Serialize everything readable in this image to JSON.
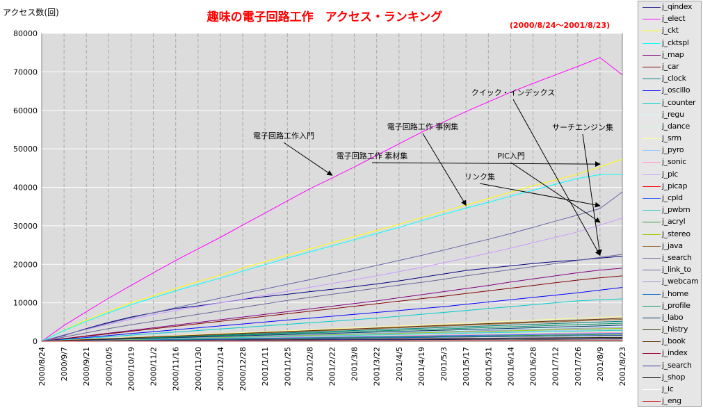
{
  "chart_data": {
    "type": "line",
    "title": "趣味の電子回路工作　アクセス・ランキング",
    "subtitle": "(2000/8/24～2001/8/23)",
    "ylabel": "アクセス数(回)",
    "xlabel": "",
    "ylim": [
      0,
      80000
    ],
    "y_ticks": [
      0,
      10000,
      20000,
      30000,
      40000,
      50000,
      60000,
      70000,
      80000
    ],
    "x_ticks": [
      "2000/8/24",
      "2000/9/7",
      "2000/9/21",
      "2000/10/5",
      "2000/10/19",
      "2000/11/2",
      "2000/11/16",
      "2000/11/30",
      "2000/12/14",
      "2000/12/28",
      "2001/1/11",
      "2001/1/25",
      "2001/2/8",
      "2001/2/22",
      "2001/3/8",
      "2001/3/22",
      "2001/4/5",
      "2001/4/19",
      "2001/5/3",
      "2001/5/17",
      "2001/5/31",
      "2001/6/14",
      "2001/6/28",
      "2001/7/12",
      "2001/7/26",
      "2001/8/9",
      "2001/8/23"
    ],
    "grid": true,
    "legend_position": "right",
    "plot_background": "#dcdcdc",
    "title_color": "#ff0000",
    "annotations": [
      {
        "text": "電子回路工作入門",
        "series": "j_elect",
        "at_date": "2001/2/22"
      },
      {
        "text": "電子回路工作 素材集",
        "series": "j_ckt",
        "at_date": "2001/4/12"
      },
      {
        "text": "電子回路工作 事例集",
        "series": "j_cktspl",
        "at_date": "2001/5/17"
      },
      {
        "text": "リンク集",
        "series": "j_link_to",
        "at_date": "2001/5/27"
      },
      {
        "text": "PIC入門",
        "series": "j_pic",
        "at_date": "2001/6/24"
      },
      {
        "text": "クイック・インデックス",
        "series": "j_qindex",
        "at_date": "2001/8/13"
      },
      {
        "text": "サーチエンジン集",
        "series": "j_search",
        "at_date": "2001/8/19"
      }
    ],
    "series": [
      {
        "name": "j_qindex",
        "color": "#000080",
        "values": [
          0,
          1500,
          3300,
          4900,
          6300,
          7400,
          8500,
          9200,
          10000,
          10900,
          11600,
          12200,
          12900,
          13500,
          14200,
          14900,
          15700,
          16600,
          17500,
          18400,
          19000,
          19600,
          20200,
          20700,
          21100,
          21600,
          22100
        ]
      },
      {
        "name": "j_elect",
        "color": "#ff00ff",
        "values": [
          0,
          4100,
          7700,
          11200,
          14500,
          17800,
          21000,
          24000,
          27000,
          30200,
          33300,
          36500,
          39600,
          42400,
          45300,
          48300,
          51300,
          54300,
          57000,
          59700,
          62200,
          64700,
          67000,
          69200,
          71400,
          73700,
          69200
        ]
      },
      {
        "name": "j_ckt",
        "color": "#ffff00",
        "values": [
          0,
          2900,
          5500,
          7800,
          10000,
          11800,
          13700,
          15500,
          17200,
          19000,
          20700,
          22400,
          24000,
          25600,
          27200,
          28800,
          30400,
          32100,
          33800,
          35400,
          37100,
          38700,
          40400,
          41900,
          43400,
          45300,
          47300
        ]
      },
      {
        "name": "j_cktspl",
        "color": "#00ffff",
        "values": [
          0,
          2800,
          5200,
          7400,
          9500,
          11300,
          13100,
          14800,
          16400,
          18200,
          19900,
          21600,
          23200,
          24800,
          26400,
          28000,
          29600,
          31300,
          33000,
          34600,
          36100,
          37700,
          39200,
          40800,
          42300,
          43300,
          43400
        ]
      },
      {
        "name": "j_map",
        "color": "#800080",
        "values": [
          0,
          700,
          1400,
          2100,
          2800,
          3500,
          4200,
          4900,
          5600,
          6300,
          7000,
          7700,
          8400,
          9100,
          9800,
          10500,
          11300,
          12100,
          12900,
          13700,
          14500,
          15400,
          16200,
          17000,
          17800,
          18500,
          19000
        ]
      },
      {
        "name": "j_car",
        "color": "#800000",
        "values": [
          0,
          650,
          1300,
          1950,
          2600,
          3250,
          3900,
          4550,
          5200,
          5850,
          6500,
          7150,
          7800,
          8450,
          9100,
          9750,
          10400,
          11050,
          11700,
          12400,
          13100,
          13800,
          14500,
          15200,
          15900,
          16500,
          17000
        ]
      },
      {
        "name": "j_clock",
        "color": "#008080",
        "values": [
          0,
          200,
          400,
          600,
          800,
          1000,
          1200,
          1400,
          1600,
          1800,
          2000,
          2200,
          2400,
          2600,
          2800,
          3000,
          3200,
          3400,
          3600,
          3800,
          4000,
          4200,
          4400,
          4600,
          4800,
          5000,
          5200
        ]
      },
      {
        "name": "j_oscillo",
        "color": "#0000ff",
        "values": [
          0,
          500,
          1000,
          1500,
          2000,
          2500,
          3000,
          3500,
          4000,
          4500,
          5000,
          5500,
          6000,
          6500,
          7000,
          7500,
          8000,
          8500,
          9000,
          9600,
          10200,
          10800,
          11400,
          12000,
          12600,
          13300,
          14000
        ]
      },
      {
        "name": "j_counter",
        "color": "#00cccc",
        "values": [
          0,
          400,
          800,
          1200,
          1600,
          2000,
          2400,
          2800,
          3200,
          3600,
          4000,
          4400,
          4800,
          5200,
          5600,
          6000,
          6500,
          7000,
          7500,
          8000,
          8500,
          9000,
          9500,
          10000,
          10500,
          10800,
          11000
        ]
      },
      {
        "name": "j_regu",
        "color": "#ccffff",
        "values": [
          0,
          150,
          300,
          450,
          600,
          750,
          900,
          1050,
          1200,
          1350,
          1500,
          1650,
          1800,
          1950,
          2100,
          2250,
          2400,
          2550,
          2700,
          2850,
          3000,
          3150,
          3300,
          3450,
          3600,
          3750,
          3900
        ]
      },
      {
        "name": "j_dance",
        "color": "#ccffcc",
        "values": [
          0,
          100,
          200,
          300,
          400,
          500,
          600,
          700,
          800,
          900,
          1000,
          1100,
          1200,
          1300,
          1400,
          1500,
          1600,
          1700,
          1800,
          1900,
          2000,
          2100,
          2200,
          2300,
          2400,
          2500,
          2600
        ]
      },
      {
        "name": "j_srm",
        "color": "#ffff99",
        "values": [
          0,
          250,
          500,
          750,
          1000,
          1250,
          1500,
          1750,
          2000,
          2250,
          2500,
          2750,
          3000,
          3250,
          3500,
          3750,
          4000,
          4250,
          4500,
          4750,
          5000,
          5250,
          5500,
          5750,
          6000,
          6200,
          6400
        ]
      },
      {
        "name": "j_pyro",
        "color": "#99ccff",
        "values": [
          0,
          120,
          240,
          360,
          480,
          600,
          720,
          840,
          960,
          1080,
          1200,
          1320,
          1440,
          1560,
          1680,
          1800,
          1920,
          2040,
          2160,
          2280,
          2400,
          2520,
          2640,
          2760,
          2880,
          3000,
          3100
        ]
      },
      {
        "name": "j_sonic",
        "color": "#ff99cc",
        "values": [
          0,
          90,
          180,
          270,
          360,
          450,
          540,
          630,
          720,
          810,
          900,
          990,
          1080,
          1170,
          1260,
          1350,
          1440,
          1530,
          1620,
          1710,
          1800,
          1890,
          1980,
          2070,
          2160,
          2250,
          2300
        ]
      },
      {
        "name": "j_pic",
        "color": "#cc99ff",
        "values": [
          0,
          1700,
          3100,
          4400,
          5700,
          6900,
          8000,
          9000,
          10000,
          11000,
          12000,
          13000,
          14000,
          15000,
          16000,
          17000,
          18100,
          19200,
          20400,
          21600,
          22900,
          24200,
          25600,
          27000,
          28400,
          30200,
          32000
        ]
      },
      {
        "name": "j_picap",
        "color": "#ff0000",
        "values": [
          0,
          60,
          120,
          180,
          240,
          300,
          360,
          420,
          480,
          540,
          600,
          660,
          720,
          780,
          840,
          900,
          960,
          1020,
          1080,
          1140,
          1200,
          1260,
          1320,
          1380,
          1440,
          1500,
          1550
        ]
      },
      {
        "name": "j_cpld",
        "color": "#3366ff",
        "values": [
          0,
          80,
          160,
          240,
          320,
          400,
          480,
          560,
          640,
          720,
          800,
          880,
          960,
          1040,
          1120,
          1200,
          1280,
          1360,
          1440,
          1520,
          1600,
          1680,
          1760,
          1840,
          1920,
          2000,
          2050
        ]
      },
      {
        "name": "j_pwbm",
        "color": "#33cccc",
        "values": [
          0,
          110,
          220,
          330,
          440,
          550,
          660,
          770,
          880,
          990,
          1100,
          1210,
          1320,
          1430,
          1540,
          1650,
          1760,
          1870,
          1980,
          2090,
          2200,
          2310,
          2420,
          2530,
          2640,
          2750,
          2850
        ]
      },
      {
        "name": "j_acryl",
        "color": "#339933",
        "values": [
          0,
          70,
          140,
          210,
          280,
          350,
          420,
          490,
          560,
          630,
          700,
          770,
          840,
          910,
          980,
          1050,
          1120,
          1190,
          1260,
          1330,
          1400,
          1470,
          1540,
          1610,
          1680,
          1750,
          1800
        ]
      },
      {
        "name": "j_stereo",
        "color": "#99cc00",
        "values": [
          0,
          130,
          260,
          390,
          520,
          650,
          780,
          910,
          1040,
          1170,
          1300,
          1430,
          1560,
          1690,
          1820,
          1950,
          2080,
          2210,
          2340,
          2470,
          2600,
          2730,
          2860,
          2990,
          3120,
          3250,
          3350
        ]
      },
      {
        "name": "j_java",
        "color": "#996633",
        "values": [
          0,
          220,
          440,
          660,
          880,
          1100,
          1320,
          1540,
          1760,
          1980,
          2200,
          2420,
          2640,
          2860,
          3080,
          3300,
          3520,
          3740,
          3960,
          4180,
          4400,
          4620,
          4840,
          5060,
          5280,
          5500,
          5700
        ]
      },
      {
        "name": "j_search",
        "color": "#666699",
        "values": [
          0,
          1100,
          2200,
          3300,
          4300,
          5200,
          6100,
          7000,
          7900,
          8800,
          9700,
          10600,
          11400,
          12200,
          13000,
          13800,
          14600,
          15300,
          16100,
          17000,
          17800,
          18600,
          19400,
          20200,
          21000,
          21800,
          22600
        ]
      },
      {
        "name": "j_link_to",
        "color": "#6666aa",
        "values": [
          0,
          1600,
          3200,
          4700,
          6100,
          7400,
          8700,
          10000,
          11200,
          12400,
          13600,
          14800,
          16000,
          17200,
          18400,
          19700,
          21000,
          22300,
          23700,
          25100,
          26500,
          28000,
          29600,
          31200,
          32800,
          34500,
          38800
        ]
      },
      {
        "name": "j_webcam",
        "color": "#9999cc",
        "values": [
          0,
          140,
          280,
          420,
          560,
          700,
          840,
          980,
          1120,
          1260,
          1400,
          1540,
          1680,
          1820,
          1960,
          2100,
          2240,
          2380,
          2520,
          2660,
          2800,
          2940,
          3080,
          3220,
          3360,
          3500,
          3600
        ]
      },
      {
        "name": "j_home",
        "color": "#0066cc",
        "values": [
          0,
          60,
          120,
          180,
          240,
          300,
          360,
          420,
          480,
          540,
          600,
          660,
          720,
          780,
          840,
          900,
          960,
          1020,
          1080,
          1140,
          1200,
          1260,
          1320,
          1380,
          1440,
          1500,
          1500
        ]
      },
      {
        "name": "j_profile",
        "color": "#009966",
        "values": [
          0,
          180,
          360,
          540,
          720,
          900,
          1080,
          1260,
          1440,
          1620,
          1800,
          1980,
          2160,
          2340,
          2520,
          2700,
          2880,
          3060,
          3240,
          3420,
          3600,
          3780,
          3960,
          4140,
          4320,
          4500,
          4700
        ]
      },
      {
        "name": "j_labo",
        "color": "#003366",
        "values": [
          0,
          160,
          320,
          480,
          640,
          800,
          960,
          1120,
          1280,
          1440,
          1600,
          1760,
          1920,
          2080,
          2240,
          2400,
          2560,
          2720,
          2880,
          3040,
          3200,
          3360,
          3520,
          3680,
          3840,
          4000,
          4200
        ]
      },
      {
        "name": "j_histry",
        "color": "#333300",
        "values": [
          0,
          40,
          80,
          120,
          160,
          200,
          240,
          280,
          320,
          360,
          400,
          440,
          480,
          520,
          560,
          600,
          640,
          680,
          720,
          760,
          800,
          840,
          880,
          920,
          960,
          1000,
          1000
        ]
      },
      {
        "name": "j_book",
        "color": "#663300",
        "values": [
          0,
          230,
          460,
          690,
          920,
          1150,
          1380,
          1610,
          1840,
          2070,
          2300,
          2530,
          2760,
          2990,
          3220,
          3450,
          3680,
          3910,
          4140,
          4370,
          4600,
          4830,
          5060,
          5290,
          5520,
          5750,
          6000
        ]
      },
      {
        "name": "j_index",
        "color": "#990033",
        "values": [
          0,
          30,
          60,
          90,
          120,
          150,
          180,
          210,
          240,
          270,
          300,
          330,
          360,
          390,
          420,
          450,
          480,
          510,
          540,
          570,
          600,
          630,
          660,
          690,
          720,
          750,
          750
        ]
      },
      {
        "name": "j_search",
        "color": "#333399",
        "values": [
          0,
          30,
          60,
          90,
          120,
          150,
          180,
          210,
          240,
          270,
          300,
          330,
          360,
          390,
          420,
          450,
          480,
          510,
          540,
          570,
          600,
          630,
          660,
          690,
          720,
          750,
          780
        ]
      },
      {
        "name": "j_shop",
        "color": "#000000",
        "values": [
          0,
          20,
          40,
          60,
          80,
          100,
          120,
          140,
          160,
          180,
          200,
          220,
          240,
          260,
          280,
          300,
          320,
          340,
          360,
          380,
          400,
          420,
          440,
          460,
          480,
          500,
          520
        ]
      },
      {
        "name": "j_ic",
        "color": "#ffffff",
        "values": [
          0,
          15,
          30,
          45,
          60,
          75,
          90,
          105,
          120,
          135,
          150,
          165,
          180,
          195,
          210,
          225,
          240,
          255,
          270,
          285,
          300,
          315,
          330,
          345,
          360,
          375,
          390
        ]
      },
      {
        "name": "j_eng",
        "color": "#cc3333",
        "values": [
          0,
          10,
          20,
          30,
          40,
          50,
          60,
          70,
          80,
          90,
          100,
          110,
          120,
          130,
          140,
          150,
          160,
          170,
          180,
          190,
          200,
          210,
          220,
          230,
          240,
          250,
          260
        ]
      }
    ]
  }
}
